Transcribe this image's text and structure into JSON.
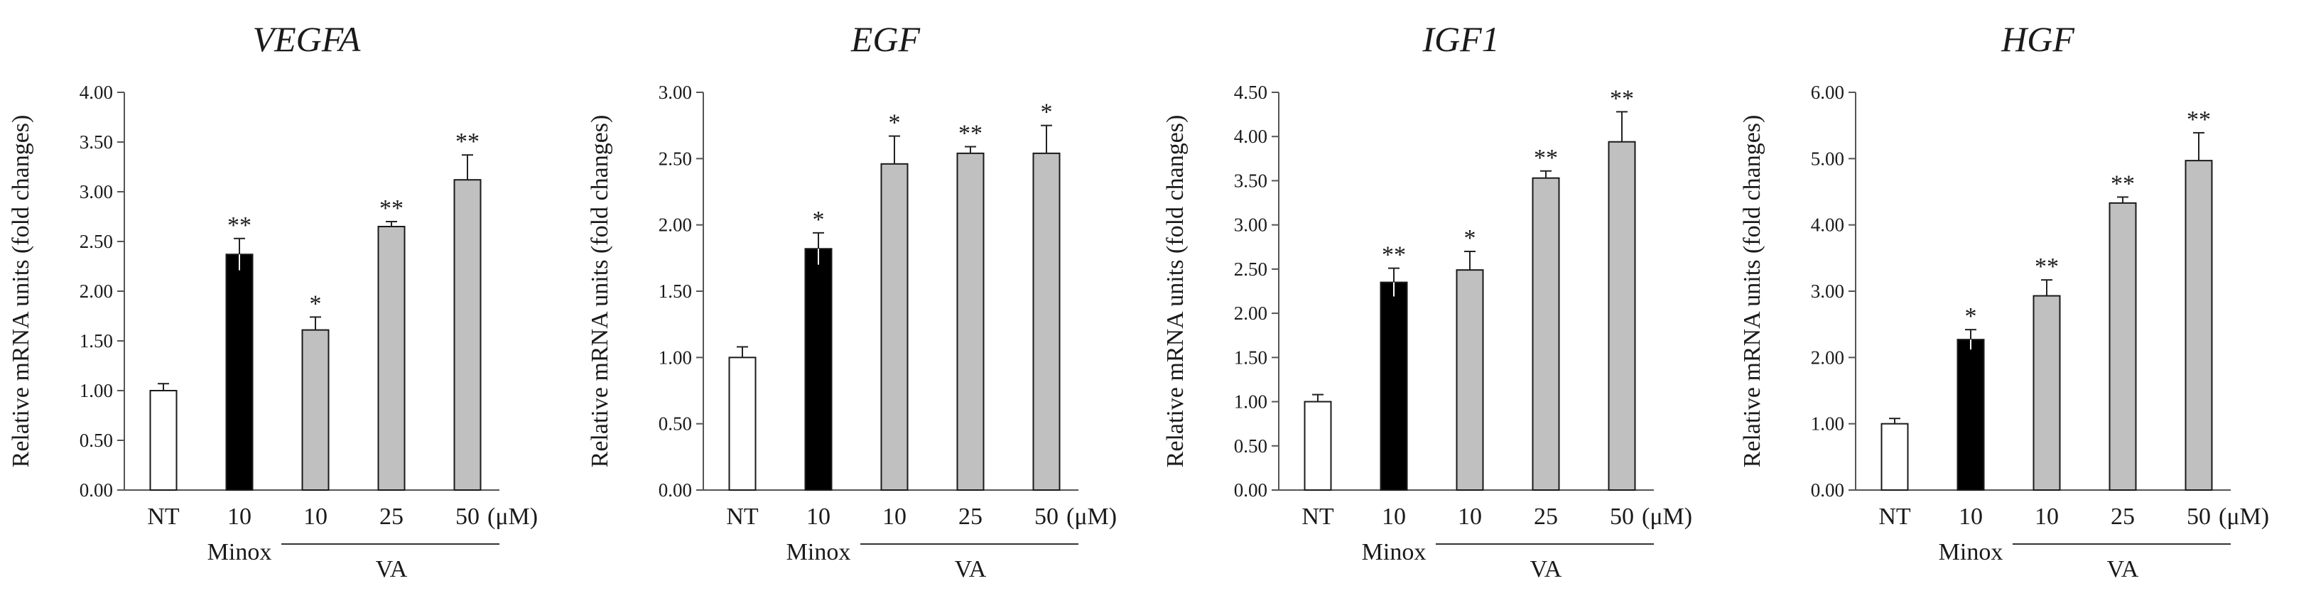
{
  "figure": {
    "x_categories": [
      "NT",
      "10",
      "10",
      "25",
      "50"
    ],
    "unit_label": "(μM)",
    "group_labels": {
      "minox": "Minox",
      "va": "VA"
    },
    "bar_colors": [
      "#ffffff",
      "#000000",
      "#c0c0c0",
      "#c0c0c0",
      "#c0c0c0"
    ],
    "bar_stroke": "#1a1a1a"
  },
  "chart_data": [
    {
      "type": "bar",
      "title": "VEGFA",
      "ylabel": "Relative mRNA units (fold changes)",
      "categories": [
        "NT",
        "10",
        "10",
        "25",
        "50"
      ],
      "groups": [
        "",
        "Minox",
        "VA",
        "VA",
        "VA"
      ],
      "values": [
        1.0,
        2.37,
        1.61,
        2.65,
        3.12
      ],
      "errors": [
        0.07,
        0.16,
        0.13,
        0.05,
        0.25
      ],
      "significance": [
        "",
        "**",
        "*",
        "**",
        "**"
      ],
      "ylim": [
        0,
        4.0
      ],
      "yticks": [
        0.0,
        0.5,
        1.0,
        1.5,
        2.0,
        2.5,
        3.0,
        3.5,
        4.0
      ],
      "ytick_labels": [
        "0.00",
        "0.50",
        "1.00",
        "1.50",
        "2.00",
        "2.50",
        "3.00",
        "3.50",
        "4.00"
      ]
    },
    {
      "type": "bar",
      "title": "EGF",
      "ylabel": "Relative mRNA units (fold changes)",
      "categories": [
        "NT",
        "10",
        "10",
        "25",
        "50"
      ],
      "groups": [
        "",
        "Minox",
        "VA",
        "VA",
        "VA"
      ],
      "values": [
        1.0,
        1.82,
        2.46,
        2.54,
        2.54
      ],
      "errors": [
        0.08,
        0.12,
        0.21,
        0.05,
        0.21
      ],
      "significance": [
        "",
        "*",
        "*",
        "**",
        "*"
      ],
      "ylim": [
        0,
        3.0
      ],
      "yticks": [
        0.0,
        0.5,
        1.0,
        1.5,
        2.0,
        2.5,
        3.0
      ],
      "ytick_labels": [
        "0.00",
        "0.50",
        "1.00",
        "1.50",
        "2.00",
        "2.50",
        "3.00"
      ]
    },
    {
      "type": "bar",
      "title": "IGF1",
      "ylabel": "Relative mRNA units (fold changes)",
      "categories": [
        "NT",
        "10",
        "10",
        "25",
        "50"
      ],
      "groups": [
        "",
        "Minox",
        "VA",
        "VA",
        "VA"
      ],
      "values": [
        1.0,
        2.35,
        2.49,
        3.53,
        3.94
      ],
      "errors": [
        0.08,
        0.16,
        0.21,
        0.08,
        0.34
      ],
      "significance": [
        "",
        "**",
        "*",
        "**",
        "**"
      ],
      "ylim": [
        0,
        4.5
      ],
      "yticks": [
        0.0,
        0.5,
        1.0,
        1.5,
        2.0,
        2.5,
        3.0,
        3.5,
        4.0,
        4.5
      ],
      "ytick_labels": [
        "0.00",
        "0.50",
        "1.00",
        "1.50",
        "2.00",
        "2.50",
        "3.00",
        "3.50",
        "4.00",
        "4.50"
      ]
    },
    {
      "type": "bar",
      "title": "HGF",
      "ylabel": "Relative mRNA units (fold changes)",
      "categories": [
        "NT",
        "10",
        "10",
        "25",
        "50"
      ],
      "groups": [
        "",
        "Minox",
        "VA",
        "VA",
        "VA"
      ],
      "values": [
        1.0,
        2.27,
        2.93,
        4.33,
        4.97
      ],
      "errors": [
        0.08,
        0.15,
        0.24,
        0.09,
        0.42
      ],
      "significance": [
        "",
        "*",
        "**",
        "**",
        "**"
      ],
      "ylim": [
        0,
        6.0
      ],
      "yticks": [
        0.0,
        1.0,
        2.0,
        3.0,
        4.0,
        5.0,
        6.0
      ],
      "ytick_labels": [
        "0.00",
        "1.00",
        "2.00",
        "3.00",
        "4.00",
        "5.00",
        "6.00"
      ]
    }
  ]
}
